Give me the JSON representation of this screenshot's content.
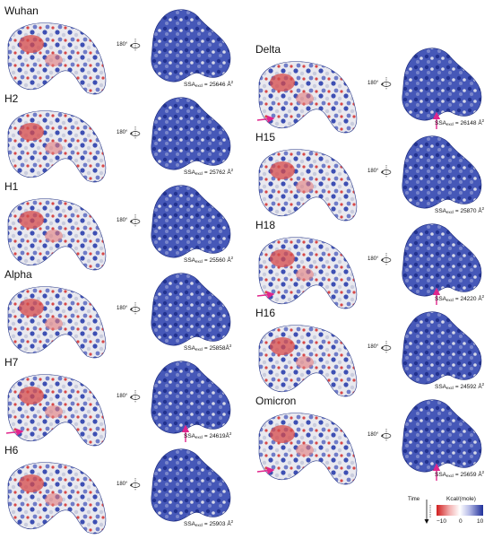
{
  "panels": [
    {
      "name": "Wuhan",
      "ssa": "25646 Å",
      "arrows": false
    },
    {
      "name": "H2",
      "ssa": "25762 Å",
      "arrows": false
    },
    {
      "name": "H1",
      "ssa": "25560 Å",
      "arrows": false
    },
    {
      "name": "Alpha",
      "ssa": "25858Å",
      "arrows": false
    },
    {
      "name": "H7",
      "ssa": "24619Å",
      "arrows": true
    },
    {
      "name": "H6",
      "ssa": "25903 Å",
      "arrows": false
    },
    {
      "name": "Delta",
      "ssa": "26148 Å",
      "arrows": true
    },
    {
      "name": "H15",
      "ssa": "25870 Å",
      "arrows": false
    },
    {
      "name": "H18",
      "ssa": "24220 Å",
      "arrows": true
    },
    {
      "name": "H16",
      "ssa": "24592 Å",
      "arrows": false
    },
    {
      "name": "Omicron",
      "ssa": "25659 Å",
      "arrows": true
    }
  ],
  "ssa_label": "SSA",
  "ssa_sub": "excl",
  "ssa_eq": " = ",
  "ssa_sup": "2",
  "rotation_label": "180°",
  "legend": {
    "time": "Time",
    "unit": "Kcal/(mole)",
    "ticks": [
      "−10",
      "0",
      "10"
    ],
    "colors": {
      "negative": "#d01f1f",
      "neutral": "#ffffff",
      "positive": "#1f2f9a"
    }
  },
  "arrow_color": "#e0258c"
}
